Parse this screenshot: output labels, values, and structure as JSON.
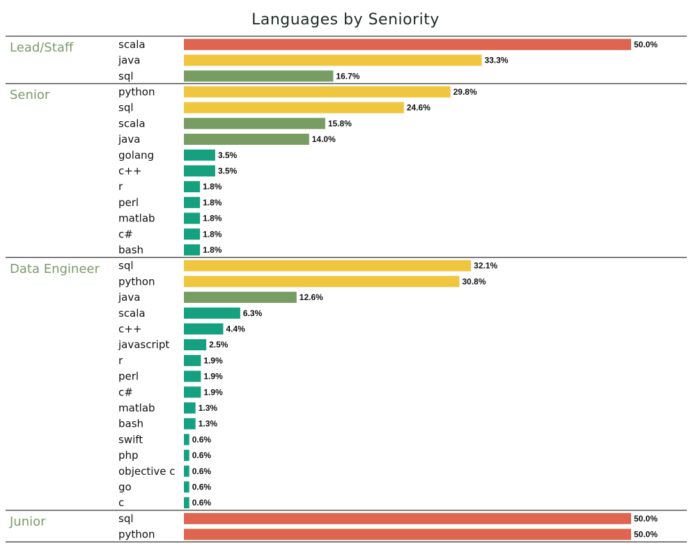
{
  "chart_data": {
    "type": "bar",
    "orientation": "horizontal",
    "title": "Languages by Seniority",
    "value_format": "percent_1dp",
    "xlim": [
      0,
      50
    ],
    "grid": false,
    "legend": "none",
    "colors": {
      "high": "#de6651",
      "upper": "#f0c540",
      "mid": "#779d63",
      "low": "#15a07f",
      "divider": "#000000",
      "group_label": "#7a9a6a"
    },
    "groups": [
      {
        "name": "Lead/Staff",
        "bars": [
          {
            "category": "scala",
            "value": 50.0,
            "label": "50.0%"
          },
          {
            "category": "java",
            "value": 33.3,
            "label": "33.3%"
          },
          {
            "category": "sql",
            "value": 16.7,
            "label": "16.7%"
          }
        ]
      },
      {
        "name": "Senior",
        "bars": [
          {
            "category": "python",
            "value": 29.8,
            "label": "29.8%"
          },
          {
            "category": "sql",
            "value": 24.6,
            "label": "24.6%"
          },
          {
            "category": "scala",
            "value": 15.8,
            "label": "15.8%"
          },
          {
            "category": "java",
            "value": 14.0,
            "label": "14.0%"
          },
          {
            "category": "golang",
            "value": 3.5,
            "label": "3.5%"
          },
          {
            "category": "c++",
            "value": 3.5,
            "label": "3.5%"
          },
          {
            "category": "r",
            "value": 1.8,
            "label": "1.8%"
          },
          {
            "category": "perl",
            "value": 1.8,
            "label": "1.8%"
          },
          {
            "category": "matlab",
            "value": 1.8,
            "label": "1.8%"
          },
          {
            "category": "c#",
            "value": 1.8,
            "label": "1.8%"
          },
          {
            "category": "bash",
            "value": 1.8,
            "label": "1.8%"
          }
        ]
      },
      {
        "name": "Data Engineer",
        "bars": [
          {
            "category": "sql",
            "value": 32.1,
            "label": "32.1%"
          },
          {
            "category": "python",
            "value": 30.8,
            "label": "30.8%"
          },
          {
            "category": "java",
            "value": 12.6,
            "label": "12.6%"
          },
          {
            "category": "scala",
            "value": 6.3,
            "label": "6.3%"
          },
          {
            "category": "c++",
            "value": 4.4,
            "label": "4.4%"
          },
          {
            "category": "javascript",
            "value": 2.5,
            "label": "2.5%"
          },
          {
            "category": "r",
            "value": 1.9,
            "label": "1.9%"
          },
          {
            "category": "perl",
            "value": 1.9,
            "label": "1.9%"
          },
          {
            "category": "c#",
            "value": 1.9,
            "label": "1.9%"
          },
          {
            "category": "matlab",
            "value": 1.3,
            "label": "1.3%"
          },
          {
            "category": "bash",
            "value": 1.3,
            "label": "1.3%"
          },
          {
            "category": "swift",
            "value": 0.6,
            "label": "0.6%"
          },
          {
            "category": "php",
            "value": 0.6,
            "label": "0.6%"
          },
          {
            "category": "objective c",
            "value": 0.6,
            "label": "0.6%"
          },
          {
            "category": "go",
            "value": 0.6,
            "label": "0.6%"
          },
          {
            "category": "c",
            "value": 0.6,
            "label": "0.6%"
          }
        ]
      },
      {
        "name": "Junior",
        "bars": [
          {
            "category": "sql",
            "value": 50.0,
            "label": "50.0%"
          },
          {
            "category": "python",
            "value": 50.0,
            "label": "50.0%"
          }
        ]
      }
    ]
  }
}
